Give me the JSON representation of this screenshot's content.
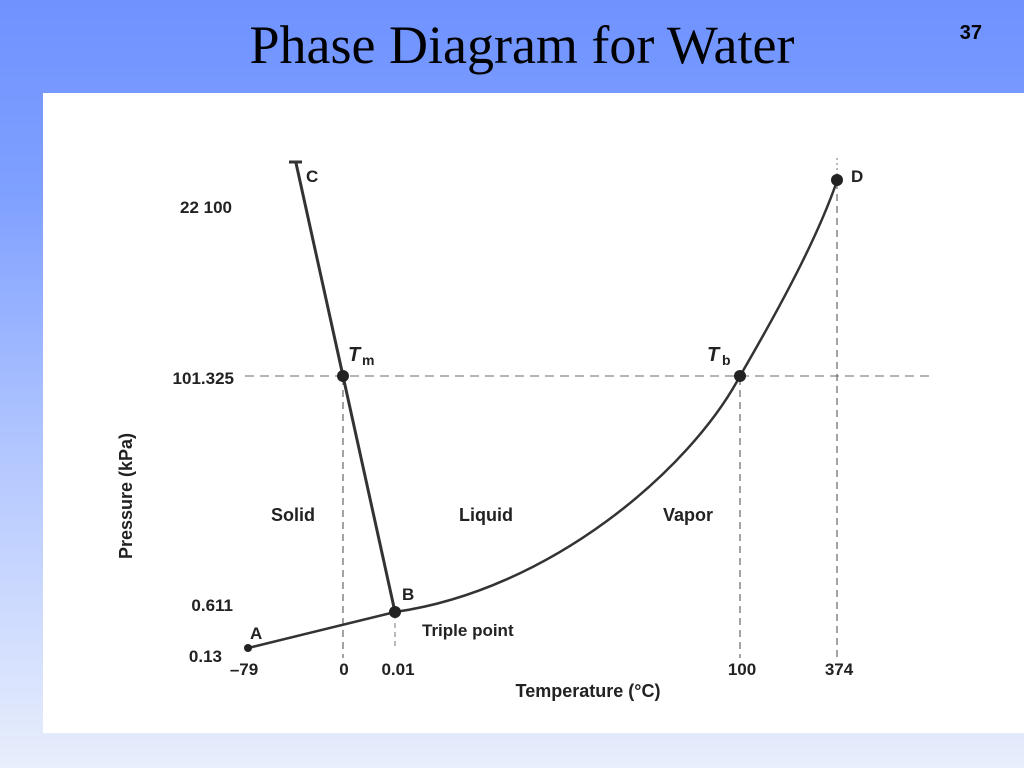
{
  "slide": {
    "title": "Phase Diagram for Water",
    "number": "37"
  },
  "diagram": {
    "axes": {
      "y_label": "Pressure (kPa)",
      "x_label": "Temperature (°C)",
      "y_ticks": [
        "22 100",
        "101.325",
        "0.611",
        "0.13"
      ],
      "x_ticks": [
        "–79",
        "0",
        "0.01",
        "100",
        "374"
      ]
    },
    "regions": {
      "solid": "Solid",
      "liquid": "Liquid",
      "vapor": "Vapor"
    },
    "points": {
      "a": "A",
      "b": "B",
      "c": "C",
      "d": "D",
      "tm_main": "T",
      "tm_sub": "m",
      "tb_main": "T",
      "tb_sub": "b",
      "triple_point": "Triple point"
    }
  }
}
